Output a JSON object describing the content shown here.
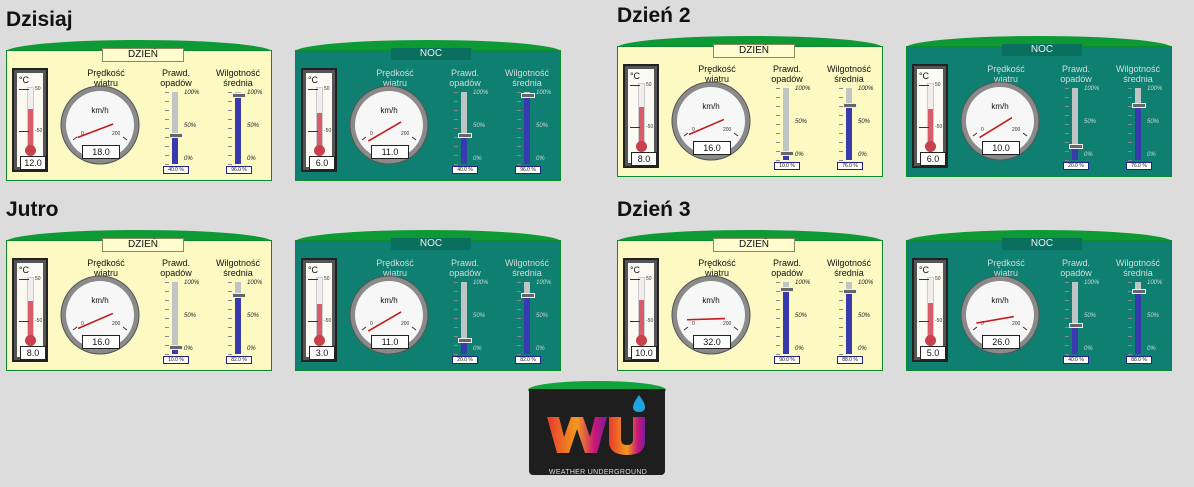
{
  "labels": {
    "temp_unit": "°C",
    "temp_max": "50",
    "temp_min": "-50",
    "speed_line1": "Prędkość",
    "speed_line2": "wiatru",
    "speed_unit": "km/h",
    "speed_min": "0",
    "speed_max": "200",
    "precip_line1": "Prawd.",
    "precip_line2": "opadów",
    "humid_line1": "Wilgotność",
    "humid_line2": "średnia",
    "pct_100": "100%",
    "pct_50": "50%",
    "pct_0": "0%"
  },
  "days": [
    {
      "title": "Dzisiaj",
      "day": {
        "label": "DZIEŃ",
        "temp": "12.0",
        "wind": "18.0",
        "precip": "40.0 %",
        "humid": "96.0 %"
      },
      "night": {
        "label": "NOC",
        "temp": "6.0",
        "wind": "11.0",
        "precip": "40.0 %",
        "humid": "96.0 %"
      }
    },
    {
      "title": "Dzień 2",
      "day": {
        "label": "DZIEŃ",
        "temp": "8.0",
        "wind": "16.0",
        "precip": "10.0 %",
        "humid": "76.0 %"
      },
      "night": {
        "label": "NOC",
        "temp": "6.0",
        "wind": "10.0",
        "precip": "20.0 %",
        "humid": "76.0 %"
      }
    },
    {
      "title": "Jutro",
      "day": {
        "label": "DZIEŃ",
        "temp": "8.0",
        "wind": "16.0",
        "precip": "10.0 %",
        "humid": "82.0 %"
      },
      "night": {
        "label": "NOC",
        "temp": "3.0",
        "wind": "11.0",
        "precip": "20.0 %",
        "humid": "82.0 %"
      }
    },
    {
      "title": "Dzień 3",
      "day": {
        "label": "DZIEŃ",
        "temp": "10.0",
        "wind": "32.0",
        "precip": "90.0 %",
        "humid": "88.0 %"
      },
      "night": {
        "label": "NOC",
        "temp": "5.0",
        "wind": "26.0",
        "precip": "40.0 %",
        "humid": "88.0 %"
      }
    }
  ],
  "logo": {
    "text": "WEATHER UNDERGROUND",
    "icon": "weather-underground-logo-icon"
  }
}
